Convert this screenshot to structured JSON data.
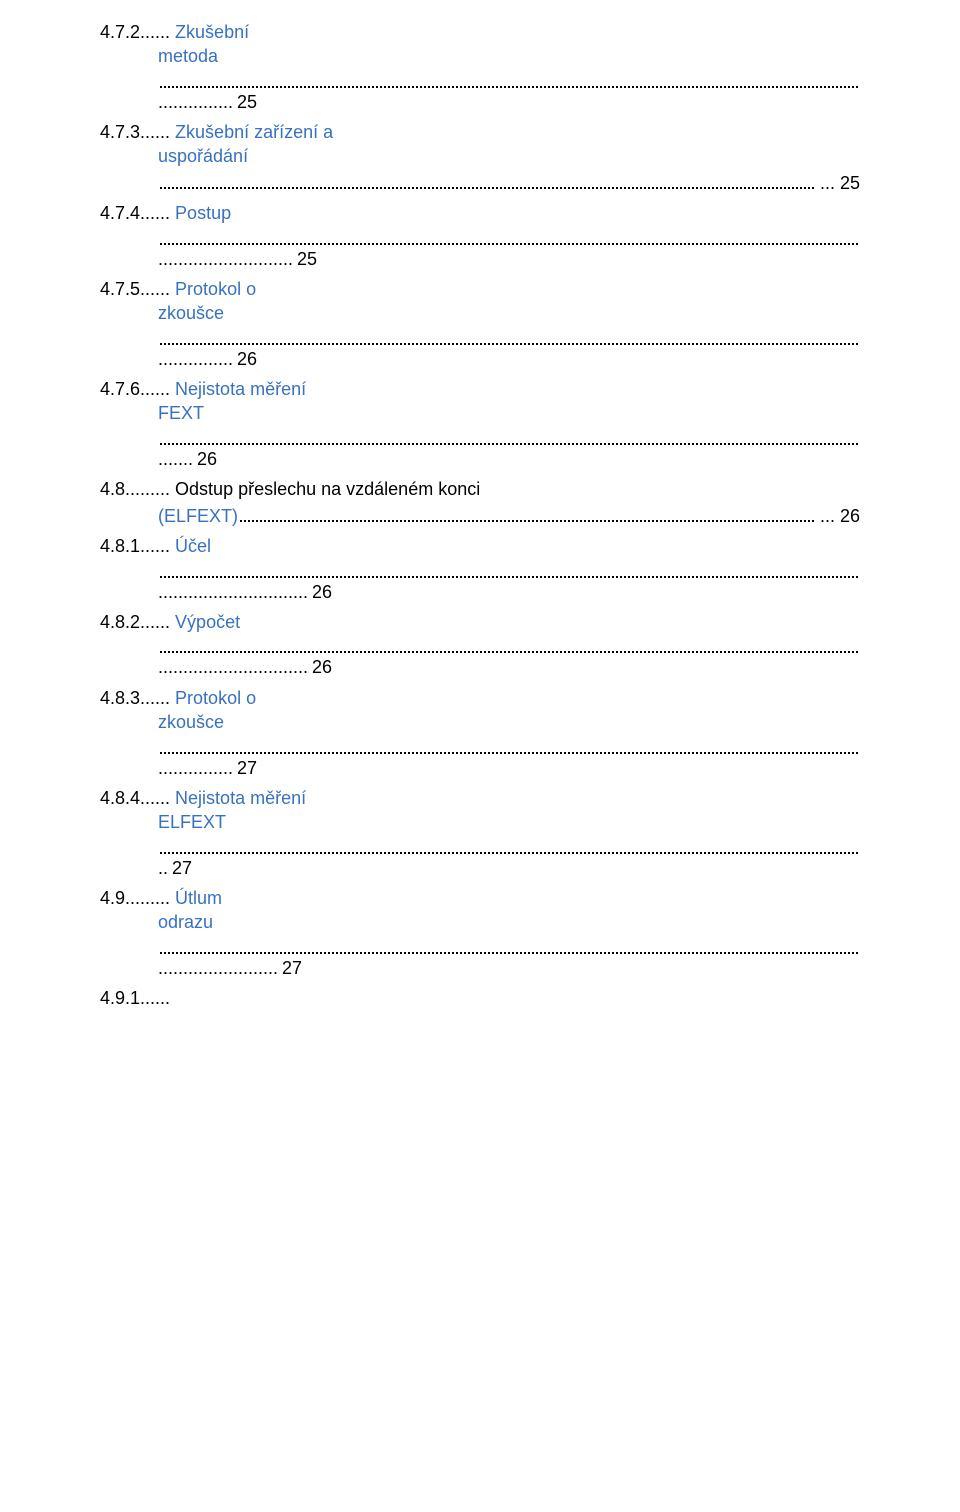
{
  "colors": {
    "link_blue": "#3871c1",
    "text_black": "#000000"
  },
  "items": [
    {
      "num": "4.7.2......",
      "title_lines": [
        "Zkušební",
        "metoda"
      ],
      "lead_dots": "...............",
      "trail": "...",
      "page": "25"
    },
    {
      "num": "4.7.3......",
      "title_lines": [
        "Zkušební zařízení a",
        "uspořádání"
      ],
      "lead_dots": "",
      "trail": "...",
      "page": "25",
      "single_row": true
    },
    {
      "num": "4.7.4......",
      "title_lines": [
        "Postup"
      ],
      "lead_dots": "...........................",
      "trail": "...",
      "page": "25"
    },
    {
      "num": "4.7.5......",
      "title_lines": [
        "Protokol o",
        "zkoušce"
      ],
      "lead_dots": "...............",
      "trail": "...",
      "page": "26"
    },
    {
      "num": "4.7.6......",
      "title_lines": [
        "Nejistota měření",
        "FEXT"
      ],
      "lead_dots": ".......",
      "trail": "...",
      "page": "26"
    },
    {
      "num": "4.8.........",
      "title_mixed": {
        "black": "Odstup přeslechu na vzdáleném konci ",
        "blue": "(ELFEXT)"
      },
      "trail": "...",
      "page": "26",
      "inline": true
    },
    {
      "num": "4.8.1......",
      "title_lines": [
        "Účel"
      ],
      "lead_dots": "..............................",
      "trail": "...",
      "page": "26"
    },
    {
      "num": "4.8.2......",
      "title_lines": [
        "Výpočet"
      ],
      "lead_dots": "..............................",
      "trail": "...",
      "page": "26"
    },
    {
      "num": "4.8.3......",
      "title_lines": [
        "Protokol o",
        "zkoušce"
      ],
      "lead_dots": "...............",
      "trail": "...",
      "page": "27"
    },
    {
      "num": "4.8.4......",
      "title_lines": [
        "Nejistota měření",
        "ELFEXT"
      ],
      "lead_dots": "..",
      "trail": "...",
      "page": "27"
    },
    {
      "num": "4.9.........",
      "title_lines": [
        "Útlum",
        "odrazu"
      ],
      "lead_dots": "........................",
      "trail": "...",
      "page": "27"
    },
    {
      "num": "4.9.1......",
      "num_only": true
    }
  ]
}
